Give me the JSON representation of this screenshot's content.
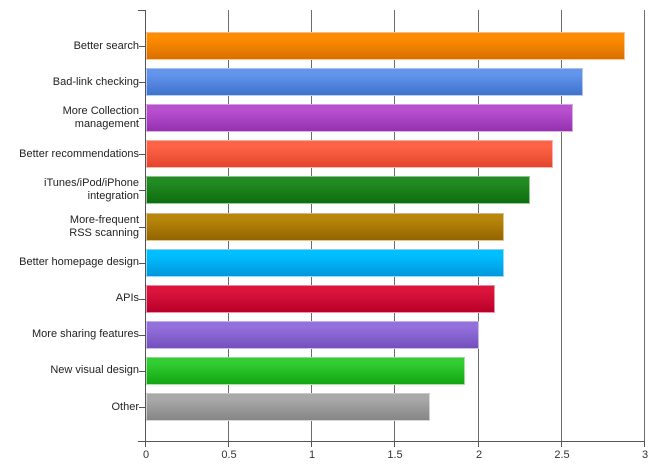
{
  "chart_data": {
    "type": "bar",
    "orientation": "horizontal",
    "title": "",
    "xlabel": "",
    "ylabel": "",
    "xlim": [
      0,
      3
    ],
    "x_ticks": [
      "0",
      "0.5",
      "1",
      "1.5",
      "2",
      "2.5",
      "3"
    ],
    "grid": {
      "vertical": true,
      "horizontal": false
    },
    "legend": null,
    "categories": [
      "Better search",
      "Bad-link checking",
      "More Collection management",
      "Better recommendations",
      "iTunes/iPod/iPhone integration",
      "More-frequent RSS scanning",
      "Better homepage design",
      "APIs",
      "More sharing features",
      "New visual design",
      "Other"
    ],
    "label_lines": [
      [
        "Better search"
      ],
      [
        "Bad-link checking"
      ],
      [
        "More Collection",
        "management"
      ],
      [
        "Better recommendations"
      ],
      [
        "iTunes/iPod/iPhone",
        "integration"
      ],
      [
        "More-frequent",
        "RSS scanning"
      ],
      [
        "Better homepage design"
      ],
      [
        "APIs"
      ],
      [
        "More sharing features"
      ],
      [
        "New visual design"
      ],
      [
        "Other"
      ]
    ],
    "values": [
      2.88,
      2.63,
      2.57,
      2.45,
      2.31,
      2.15,
      2.15,
      2.1,
      2.0,
      1.92,
      1.71
    ],
    "colors": [
      [
        "#ff8c00",
        "#d96f00"
      ],
      [
        "#6495ed",
        "#3f72cc"
      ],
      [
        "#b950d0",
        "#9432ae"
      ],
      [
        "#ff6347",
        "#e2452c"
      ],
      [
        "#228b22",
        "#0d6e0d"
      ],
      [
        "#b8860b",
        "#946400"
      ],
      [
        "#00bfff",
        "#0096dc"
      ],
      [
        "#dc143c",
        "#b8002a"
      ],
      [
        "#9370db",
        "#7350bb"
      ],
      [
        "#32cd32",
        "#12a612"
      ],
      [
        "#a9a9a9",
        "#858585"
      ]
    ]
  }
}
